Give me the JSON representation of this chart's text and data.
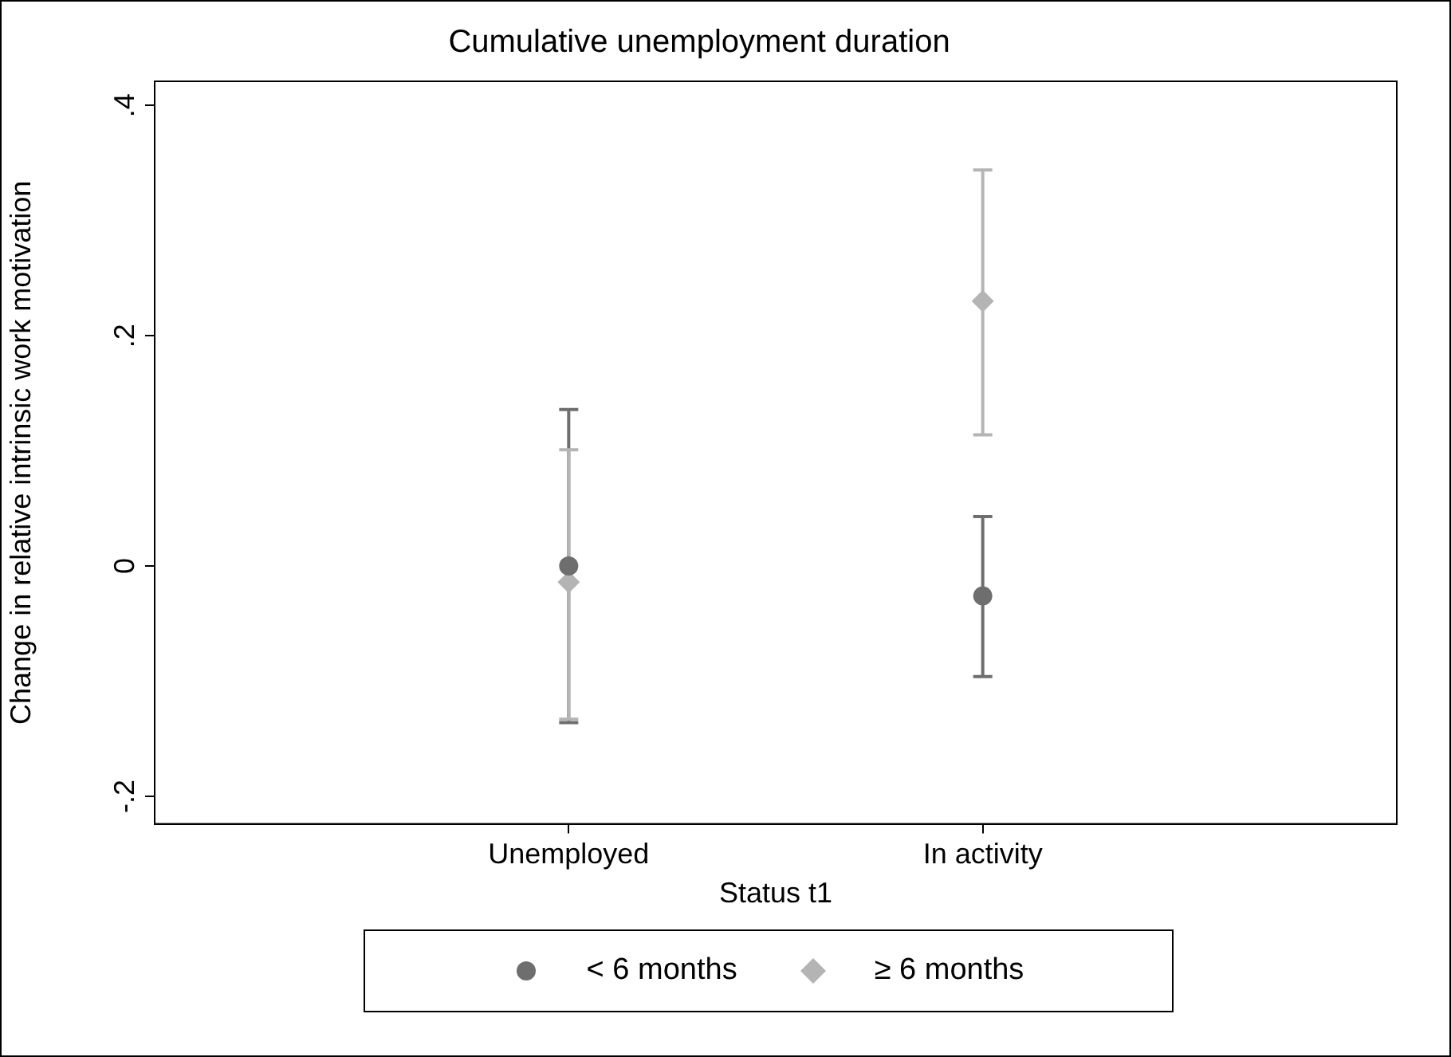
{
  "chart_data": {
    "type": "scatter",
    "title": "Cumulative unemployment duration",
    "xlabel": "Status t1",
    "ylabel": "Change in relative intrinsic work motivation",
    "categories": [
      "Unemployed",
      "In activity"
    ],
    "series": [
      {
        "name": "< 6 months",
        "color": "#6e6e6e",
        "marker": "circle",
        "values": [
          0.0,
          -0.026
        ],
        "errors": [
          [
            -0.136,
            0.136
          ],
          [
            -0.096,
            0.043
          ]
        ]
      },
      {
        "name": "≥ 6 months",
        "color": "#b4b4b4",
        "marker": "diamond",
        "values": [
          -0.014,
          0.23
        ],
        "errors": [
          [
            -0.133,
            0.101
          ],
          [
            0.114,
            0.344
          ]
        ]
      }
    ],
    "ylim": [
      -0.224,
      0.421
    ],
    "yticks": [
      {
        "value": -0.2,
        "label": "-.2"
      },
      {
        "value": 0,
        "label": "0"
      },
      {
        "value": 0.2,
        "label": ".2"
      },
      {
        "value": 0.4,
        "label": ".4"
      }
    ],
    "grid": false,
    "legend": "bottom"
  }
}
